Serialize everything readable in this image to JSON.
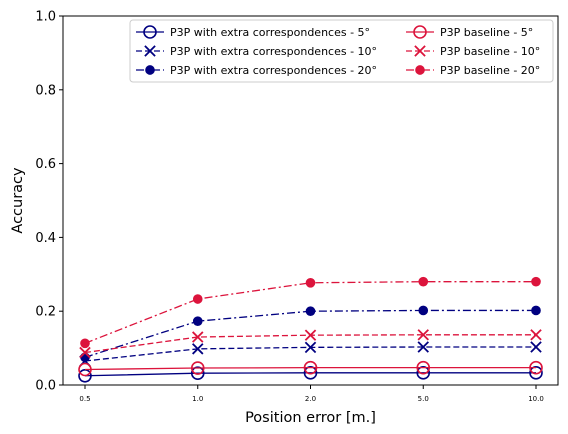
{
  "chart_data": {
    "type": "line",
    "title": "",
    "xlabel": "Position error [m.]",
    "ylabel": "Accuracy",
    "x": [
      "0.5",
      "1.0",
      "2.0",
      "5.0",
      "10.0"
    ],
    "ylim": [
      0.0,
      1.0
    ],
    "yticks": [
      "0.0",
      "0.2",
      "0.4",
      "0.6",
      "0.8",
      "1.0"
    ],
    "grid": false,
    "legend_position": "top-right",
    "legend_columns": 2,
    "series": [
      {
        "name": "P3P with extra correspondences - 5°",
        "values": [
          0.025,
          0.032,
          0.033,
          0.033,
          0.033
        ],
        "color": "#000080",
        "linestyle": "solid",
        "marker": "open-circle"
      },
      {
        "name": "P3P with extra correspondences - 10°",
        "values": [
          0.065,
          0.098,
          0.102,
          0.103,
          0.103
        ],
        "color": "#000080",
        "linestyle": "dashed",
        "marker": "x"
      },
      {
        "name": "P3P with extra correspondences - 20°",
        "values": [
          0.075,
          0.173,
          0.2,
          0.202,
          0.202
        ],
        "color": "#000080",
        "linestyle": "dashdot",
        "marker": "filled-circle"
      },
      {
        "name": "P3P baseline - 5°",
        "values": [
          0.042,
          0.046,
          0.047,
          0.047,
          0.047
        ],
        "color": "#dc143c",
        "linestyle": "solid",
        "marker": "open-circle"
      },
      {
        "name": "P3P baseline - 10°",
        "values": [
          0.088,
          0.13,
          0.135,
          0.136,
          0.136
        ],
        "color": "#dc143c",
        "linestyle": "dashed",
        "marker": "x"
      },
      {
        "name": "P3P baseline - 20°",
        "values": [
          0.113,
          0.233,
          0.277,
          0.28,
          0.28
        ],
        "color": "#dc143c",
        "linestyle": "dashdot",
        "marker": "filled-circle"
      }
    ]
  }
}
